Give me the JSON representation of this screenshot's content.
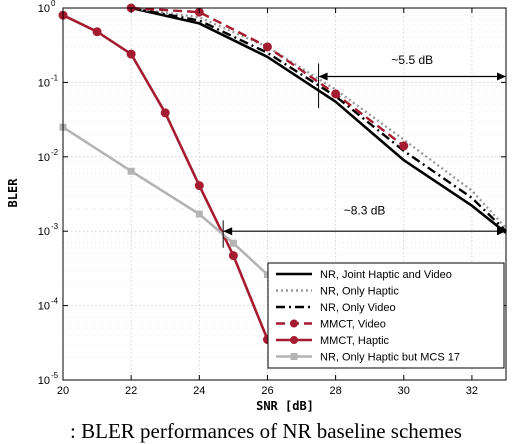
{
  "chart_data": {
    "type": "line",
    "xlabel": "SNR [dB]",
    "ylabel": "BLER",
    "xlim": [
      20,
      33
    ],
    "ylim": [
      1e-05,
      1
    ],
    "y_scale": "log",
    "grid": true,
    "legend_position": "bottom-right",
    "x_ticks": [
      20,
      22,
      24,
      26,
      28,
      30,
      32
    ],
    "x_tick_labels": [
      "20",
      "22",
      "24",
      "26",
      "28",
      "30",
      "32"
    ],
    "y_ticks": [
      1,
      0.1,
      0.01,
      0.001,
      0.0001,
      1e-05
    ],
    "y_tick_labels": [
      {
        "base": "10",
        "exp": "0"
      },
      {
        "base": "10",
        "exp": "-1"
      },
      {
        "base": "10",
        "exp": "-2"
      },
      {
        "base": "10",
        "exp": "-3"
      },
      {
        "base": "10",
        "exp": "-4"
      },
      {
        "base": "10",
        "exp": "-5"
      }
    ],
    "series": [
      {
        "name": "NR, Joint Haptic and Video",
        "color": "#000000",
        "style": "solid",
        "marker": "none",
        "x": [
          22,
          24,
          26,
          28,
          30,
          32,
          33
        ],
        "y": [
          1.0,
          0.62,
          0.22,
          0.055,
          0.009,
          0.0022,
          0.00095
        ]
      },
      {
        "name": "NR, Only Haptic",
        "color": "#9a9a9a",
        "style": "dotted",
        "marker": "none",
        "x": [
          22,
          24,
          26,
          28,
          30,
          32,
          33
        ],
        "y": [
          1.0,
          0.75,
          0.3,
          0.08,
          0.017,
          0.0035,
          0.0011
        ]
      },
      {
        "name": "NR, Only Video",
        "color": "#000000",
        "style": "dashdot",
        "marker": "none",
        "x": [
          22,
          24,
          26,
          28,
          30,
          32,
          33
        ],
        "y": [
          1.0,
          0.68,
          0.25,
          0.065,
          0.012,
          0.0028,
          0.001
        ]
      },
      {
        "name": "MMCT, Video",
        "color": "#a51c30",
        "style": "dashed",
        "marker": "circle",
        "x": [
          22,
          24,
          26,
          28,
          30
        ],
        "y": [
          1.0,
          0.88,
          0.3,
          0.07,
          0.014
        ]
      },
      {
        "name": "MMCT, Haptic",
        "color": "#a51c30",
        "style": "solid",
        "marker": "circle",
        "x": [
          20,
          21,
          22,
          23,
          24,
          25,
          26
        ],
        "y": [
          0.8,
          0.48,
          0.24,
          0.039,
          0.0041,
          0.00047,
          3.5e-05
        ]
      },
      {
        "name": "NR, Only Haptic but MCS 17",
        "color": "#b4b4b4",
        "style": "solid",
        "marker": "square",
        "x": [
          20,
          22,
          24,
          25,
          26
        ],
        "y": [
          0.025,
          0.0064,
          0.0017,
          0.00069,
          0.00026
        ]
      }
    ],
    "annotations": [
      {
        "text": "~5.5 dB",
        "x1": 27.5,
        "x2": 33,
        "y_arrow": 0.12,
        "y_text": 0.2,
        "guides": [
          {
            "x": 27.5,
            "y_top": 0.18,
            "y_bottom": 0.045
          },
          {
            "x": 33,
            "y_top": 0.18,
            "y_bottom": 0.02
          }
        ]
      },
      {
        "text": "~8.3 dB",
        "x1": 24.7,
        "x2": 33,
        "y_arrow": 0.001,
        "y_text": 0.0019,
        "guides": [
          {
            "x": 24.7,
            "y_top": 0.0014,
            "y_bottom": 0.0006
          },
          {
            "x": 33,
            "y_top": 0.0014,
            "y_bottom": 0.0006
          }
        ]
      }
    ]
  },
  "caption": ": BLER performances of NR baseline schemes"
}
